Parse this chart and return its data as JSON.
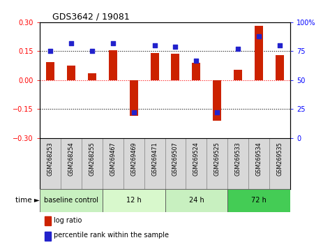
{
  "title": "GDS3642 / 19081",
  "samples": [
    "GSM268253",
    "GSM268254",
    "GSM268255",
    "GSM269467",
    "GSM269469",
    "GSM269471",
    "GSM269507",
    "GSM269524",
    "GSM269525",
    "GSM269533",
    "GSM269534",
    "GSM269535"
  ],
  "log_ratio": [
    0.095,
    0.075,
    0.035,
    0.155,
    -0.185,
    0.14,
    0.135,
    0.09,
    -0.21,
    0.055,
    0.28,
    0.13
  ],
  "percentile_rank": [
    75,
    82,
    75,
    82,
    22,
    80,
    79,
    67,
    22,
    77,
    88,
    80
  ],
  "groups": [
    {
      "label": "baseline control",
      "start": 0,
      "end": 3
    },
    {
      "label": "12 h",
      "start": 3,
      "end": 6
    },
    {
      "label": "24 h",
      "start": 6,
      "end": 9
    },
    {
      "label": "72 h",
      "start": 9,
      "end": 12
    }
  ],
  "group_colors": [
    "#c8f0c0",
    "#d8f8cc",
    "#c8f0c0",
    "#44cc55"
  ],
  "bar_color": "#cc2200",
  "dot_color": "#2222cc",
  "ylim_left": [
    -0.3,
    0.3
  ],
  "ylim_right": [
    0,
    100
  ],
  "left_yticks": [
    -0.3,
    -0.15,
    0.0,
    0.15,
    0.3
  ],
  "right_yticks": [
    0,
    25,
    50,
    75,
    100
  ],
  "right_yticklabels": [
    "0",
    "25",
    "50",
    "75",
    "100%"
  ],
  "hlines": [
    0.15,
    0.0,
    -0.15
  ],
  "hline_colors": [
    "black",
    "red",
    "black"
  ],
  "hline_styles": [
    "dotted",
    "dotted",
    "dotted"
  ],
  "bar_width": 0.4,
  "dot_size": 18,
  "cell_color": "#d8d8d8",
  "cell_border": "#888888",
  "title_fontsize": 9,
  "tick_fontsize": 7,
  "label_fontsize": 5.8,
  "group_fontsize": 7,
  "legend_fontsize": 7,
  "time_fontsize": 7.5
}
